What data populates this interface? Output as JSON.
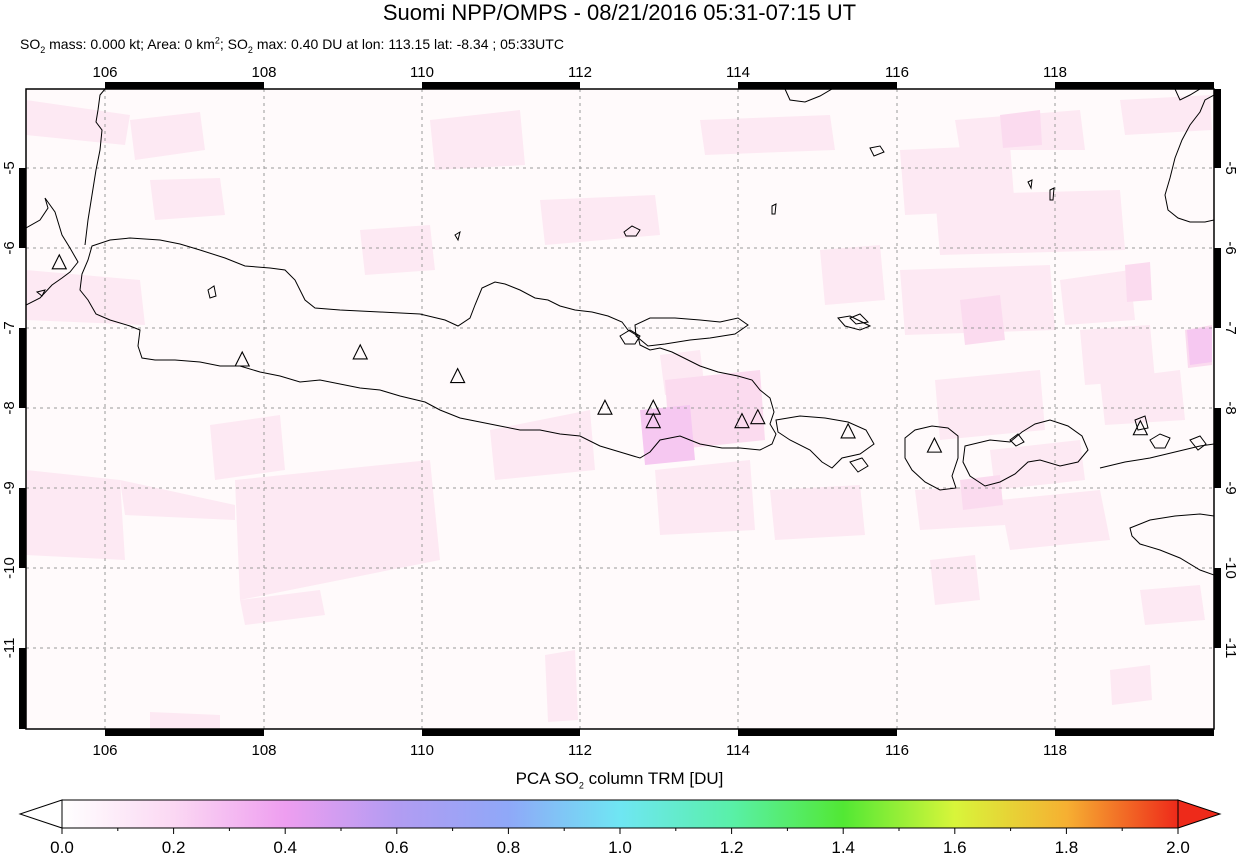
{
  "title": "Suomi NPP/OMPS - 08/21/2016 05:31-07:15 UT",
  "subtitle": {
    "mass_label": "SO",
    "mass_sub": "2",
    "mass_text": " mass: 0.000 kt; Area: 0 km",
    "area_sup": "2",
    "max_label": "; SO",
    "max_sub": "2",
    "max_text": " max: 0.40 DU at lon: 113.15 lat: -8.34 ; 05:33UTC"
  },
  "map": {
    "lon_range": [
      105,
      120
    ],
    "lat_range": [
      -12,
      -3.9
    ],
    "lon_ticks": [
      "106",
      "108",
      "110",
      "112",
      "114",
      "116",
      "118"
    ],
    "lat_ticks": [
      "-5",
      "-6",
      "-7",
      "-8",
      "-9",
      "-10",
      "-11"
    ],
    "grid": true,
    "volcanoes": [
      {
        "lon": 105.42,
        "lat": -6.1
      },
      {
        "lon": 107.73,
        "lat": -7.33
      },
      {
        "lon": 109.22,
        "lat": -7.24
      },
      {
        "lon": 110.45,
        "lat": -7.54
      },
      {
        "lon": 112.31,
        "lat": -7.94
      },
      {
        "lon": 112.92,
        "lat": -7.94
      },
      {
        "lon": 112.92,
        "lat": -8.11
      },
      {
        "lon": 114.04,
        "lat": -8.11
      },
      {
        "lon": 114.24,
        "lat": -8.06
      },
      {
        "lon": 115.38,
        "lat": -8.24
      },
      {
        "lon": 116.47,
        "lat": -8.42
      },
      {
        "lon": 119.07,
        "lat": -8.2
      }
    ]
  },
  "colorbar": {
    "title_prefix": "PCA SO",
    "title_sub": "2",
    "title_suffix": " column TRM [DU]",
    "tick_labels": [
      "0.0",
      "0.2",
      "0.4",
      "0.6",
      "0.8",
      "1.0",
      "1.2",
      "1.4",
      "1.6",
      "1.8",
      "2.0"
    ],
    "range": [
      0.0,
      2.0
    ],
    "colors": [
      "#ffffff",
      "#fbd8f3",
      "#ee9ef0",
      "#b29cf2",
      "#8fa8f8",
      "#6fe6f3",
      "#59f0a8",
      "#52e834",
      "#d8f53a",
      "#f6b032",
      "#ee2a1a"
    ]
  }
}
